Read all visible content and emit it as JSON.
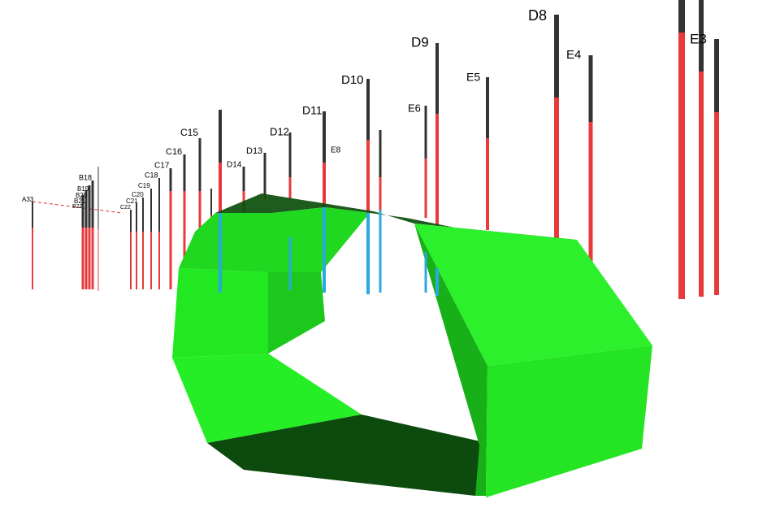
{
  "labels": [
    "A33",
    "B18",
    "B19",
    "B20",
    "B21",
    "B22",
    "C22",
    "C21",
    "C20",
    "C19",
    "C18",
    "C17",
    "C16",
    "C15",
    "D14",
    "D13",
    "D12",
    "D11",
    "E8",
    "D10",
    "E6",
    "D9",
    "E5",
    "D8",
    "E4",
    "E3"
  ]
}
